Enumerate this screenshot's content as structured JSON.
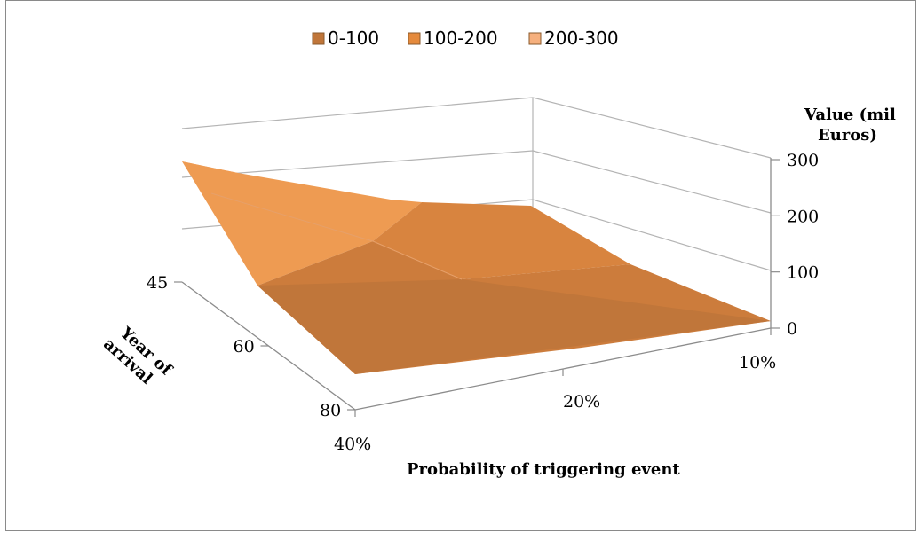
{
  "chart_data": {
    "type": "surface",
    "legend": {
      "placement": "top",
      "entries": [
        {
          "label": "0-100",
          "color": "#C0763A"
        },
        {
          "label": "100-200",
          "color": "#E58A3C"
        },
        {
          "label": "200-300",
          "color": "#F6B07E"
        }
      ]
    },
    "x_axis": {
      "title": "Probability of triggering event",
      "categories": [
        "40%",
        "20%",
        "10%"
      ]
    },
    "depth_axis": {
      "title_lines": [
        "Year of",
        "arrival"
      ],
      "categories": [
        "45",
        "60",
        "80"
      ]
    },
    "value_axis": {
      "title_lines": [
        "Value (mil",
        "Euros)"
      ],
      "ticks": [
        "0",
        "100",
        "200",
        "300"
      ],
      "range": [
        0,
        300
      ]
    },
    "values": [
      {
        "year": "45",
        "x": [
          "40%",
          "20%",
          "10%"
        ],
        "v": [
          240,
          165,
          120
        ]
      },
      {
        "year": "60",
        "x": [
          "40%",
          "20%",
          "10%"
        ],
        "v": [
          120,
          110,
          60
        ]
      },
      {
        "year": "80",
        "x": [
          "40%",
          "20%",
          "10%"
        ],
        "v": [
          40,
          15,
          0
        ]
      }
    ],
    "grid": true
  }
}
